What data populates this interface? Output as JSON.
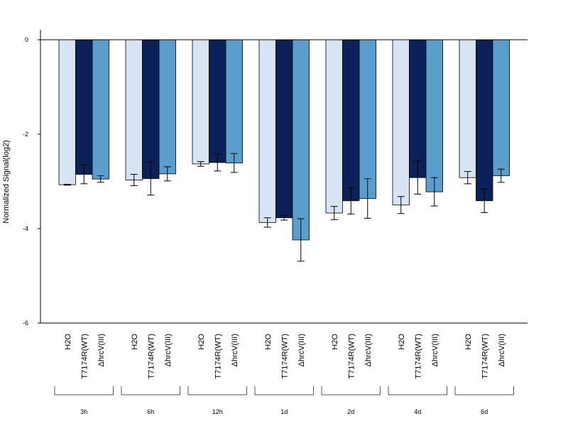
{
  "chart_data": {
    "type": "bar",
    "title": "",
    "xlabel": "",
    "ylabel": "Normalized Signal(log2)",
    "ylim": [
      -6,
      0.2
    ],
    "yticks": [
      "0",
      "-2",
      "-4",
      "-6"
    ],
    "grid": false,
    "legend": "none",
    "groups": [
      "3h",
      "6h",
      "12h",
      "1d",
      "2d",
      "4d",
      "6d"
    ],
    "conditions": [
      "H2O",
      "T7174R(WT)",
      "ΔhrcV(III)"
    ],
    "colors": [
      "#D6E4F3",
      "#0A2159",
      "#5A9FCC"
    ],
    "series": [
      {
        "name": "H2O",
        "values": [
          -3.07,
          -2.97,
          -2.63,
          -3.87,
          -3.67,
          -3.5,
          -2.92
        ],
        "errors": [
          0.01,
          0.12,
          0.05,
          0.1,
          0.14,
          0.18,
          0.13
        ]
      },
      {
        "name": "T7174R(WT)",
        "values": [
          -2.85,
          -2.94,
          -2.6,
          -3.77,
          -3.41,
          -2.92,
          -3.41
        ],
        "errors": [
          0.2,
          0.35,
          0.18,
          0.05,
          0.28,
          0.35,
          0.25
        ]
      },
      {
        "name": "ΔhrcV(III)",
        "values": [
          -2.95,
          -2.84,
          -2.61,
          -4.24,
          -3.36,
          -3.22,
          -2.88
        ],
        "errors": [
          0.07,
          0.15,
          0.2,
          0.45,
          0.42,
          0.3,
          0.14
        ]
      }
    ]
  }
}
